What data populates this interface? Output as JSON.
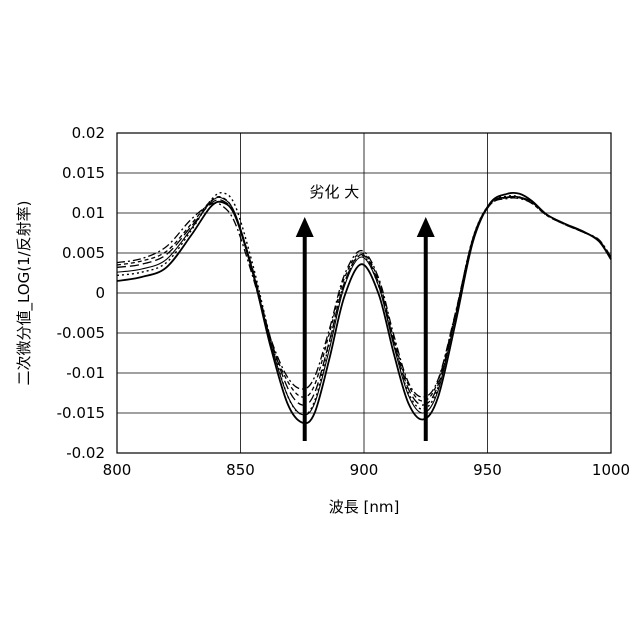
{
  "chart_data": {
    "type": "line",
    "title": "",
    "xlabel": "波長 [nm]",
    "ylabel": "二次微分値_LOG(1/反射率)",
    "xlim": [
      800,
      1000
    ],
    "ylim": [
      -0.02,
      0.02
    ],
    "x_ticks": [
      800,
      850,
      900,
      950,
      1000
    ],
    "y_ticks": [
      0.02,
      0.015,
      0.01,
      0.005,
      0,
      -0.005,
      -0.01,
      -0.015,
      -0.02
    ],
    "x_tick_labels": [
      "800",
      "850",
      "900",
      "950",
      "1000"
    ],
    "y_tick_labels": [
      "0.02",
      "0.015",
      "0.01",
      "0.005",
      "0",
      "-0.005",
      "-0.01",
      "-0.015",
      "-0.02"
    ],
    "grid": true,
    "legend": "none",
    "annotations": [
      {
        "text": "劣化 大",
        "x": 888,
        "y": 0.012
      },
      {
        "type": "arrow",
        "x": 876,
        "y_from": -0.0185,
        "y_to": 0.009
      },
      {
        "type": "arrow",
        "x": 925,
        "y_from": -0.0185,
        "y_to": 0.009
      }
    ],
    "series": [
      {
        "line_style": "solid-thick",
        "x": [
          800,
          810,
          820,
          830,
          838,
          843,
          848,
          855,
          862,
          869,
          875,
          880,
          886,
          892,
          899,
          906,
          912,
          918,
          924,
          930,
          937,
          944,
          951,
          958,
          963,
          968,
          974,
          981,
          988,
          995,
          1000
        ],
        "y": [
          0.0015,
          0.002,
          0.0032,
          0.0072,
          0.0108,
          0.0113,
          0.0095,
          0.0025,
          -0.0065,
          -0.0138,
          -0.0162,
          -0.015,
          -0.0082,
          -0.0005,
          0.0036,
          -0.0002,
          -0.0075,
          -0.0138,
          -0.0158,
          -0.013,
          -0.0038,
          0.0063,
          0.0112,
          0.0124,
          0.0124,
          0.0115,
          0.0098,
          0.0087,
          0.0078,
          0.0065,
          0.0042
        ]
      },
      {
        "line_style": "solid",
        "x": [
          800,
          810,
          820,
          830,
          838,
          843,
          848,
          855,
          862,
          869,
          875,
          880,
          886,
          892,
          899,
          906,
          912,
          918,
          924,
          930,
          937,
          944,
          951,
          958,
          963,
          968,
          974,
          981,
          988,
          995,
          1000
        ],
        "y": [
          0.0026,
          0.003,
          0.0042,
          0.008,
          0.0114,
          0.0118,
          0.0098,
          0.0028,
          -0.006,
          -0.0128,
          -0.0152,
          -0.0138,
          -0.007,
          0.0008,
          0.0045,
          0.0008,
          -0.0065,
          -0.0128,
          -0.015,
          -0.0122,
          -0.003,
          0.0068,
          0.0112,
          0.012,
          0.012,
          0.0114,
          0.0098,
          0.0087,
          0.0078,
          0.0066,
          0.0043
        ]
      },
      {
        "line_style": "long-dash",
        "x": [
          800,
          810,
          820,
          830,
          838,
          843,
          848,
          855,
          862,
          869,
          875,
          880,
          886,
          892,
          899,
          906,
          912,
          918,
          924,
          930,
          937,
          944,
          951,
          958,
          963,
          968,
          974,
          981,
          988,
          995,
          1000
        ],
        "y": [
          0.0032,
          0.0036,
          0.0048,
          0.0083,
          0.0112,
          0.0115,
          0.0096,
          0.0029,
          -0.0055,
          -0.0118,
          -0.014,
          -0.0125,
          -0.006,
          0.0012,
          0.0048,
          0.0012,
          -0.006,
          -0.012,
          -0.014,
          -0.0115,
          -0.0028,
          0.0066,
          0.011,
          0.0119,
          0.0119,
          0.0113,
          0.0098,
          0.0087,
          0.0077,
          0.0066,
          0.0044
        ]
      },
      {
        "line_style": "dash-dot",
        "x": [
          800,
          810,
          820,
          830,
          838,
          843,
          848,
          855,
          862,
          869,
          875,
          880,
          886,
          892,
          899,
          906,
          912,
          918,
          924,
          930,
          937,
          944,
          951,
          958,
          963,
          968,
          974,
          981,
          988,
          995,
          1000
        ],
        "y": [
          0.0038,
          0.0043,
          0.0058,
          0.0092,
          0.0111,
          0.0108,
          0.0086,
          0.002,
          -0.0055,
          -0.0105,
          -0.012,
          -0.0105,
          -0.0045,
          0.0022,
          0.0053,
          0.0018,
          -0.0052,
          -0.0112,
          -0.013,
          -0.0108,
          -0.0025,
          0.0066,
          0.011,
          0.0118,
          0.0118,
          0.0112,
          0.0097,
          0.0086,
          0.0077,
          0.0067,
          0.0045
        ]
      },
      {
        "line_style": "dotted",
        "x": [
          800,
          810,
          820,
          830,
          838,
          843,
          848,
          855,
          862,
          869,
          875,
          880,
          886,
          892,
          899,
          906,
          912,
          918,
          924,
          930,
          937,
          944,
          951,
          958,
          963,
          968,
          974,
          981,
          988,
          995,
          1000
        ],
        "y": [
          0.0022,
          0.0026,
          0.0038,
          0.0078,
          0.0116,
          0.0125,
          0.0108,
          0.0035,
          -0.0055,
          -0.0128,
          -0.0152,
          -0.0135,
          -0.0062,
          0.0012,
          0.0047,
          0.0008,
          -0.0063,
          -0.0125,
          -0.0145,
          -0.0118,
          -0.0028,
          0.0068,
          0.0112,
          0.0121,
          0.012,
          0.0113,
          0.0098,
          0.0087,
          0.0077,
          0.0066,
          0.0043
        ]
      },
      {
        "line_style": "short-dash",
        "x": [
          800,
          810,
          820,
          830,
          838,
          843,
          848,
          855,
          862,
          869,
          875,
          880,
          886,
          892,
          899,
          906,
          912,
          918,
          924,
          930,
          937,
          944,
          951,
          958,
          963,
          968,
          974,
          981,
          988,
          995,
          1000
        ],
        "y": [
          0.0035,
          0.004,
          0.0052,
          0.0086,
          0.0115,
          0.0119,
          0.0097,
          0.0026,
          -0.0058,
          -0.011,
          -0.013,
          -0.0115,
          -0.005,
          0.0018,
          0.005,
          0.0015,
          -0.0057,
          -0.0115,
          -0.0135,
          -0.011,
          -0.0026,
          0.0067,
          0.0111,
          0.0119,
          0.0119,
          0.0112,
          0.0097,
          0.0086,
          0.0077,
          0.0066,
          0.0044
        ]
      }
    ]
  }
}
